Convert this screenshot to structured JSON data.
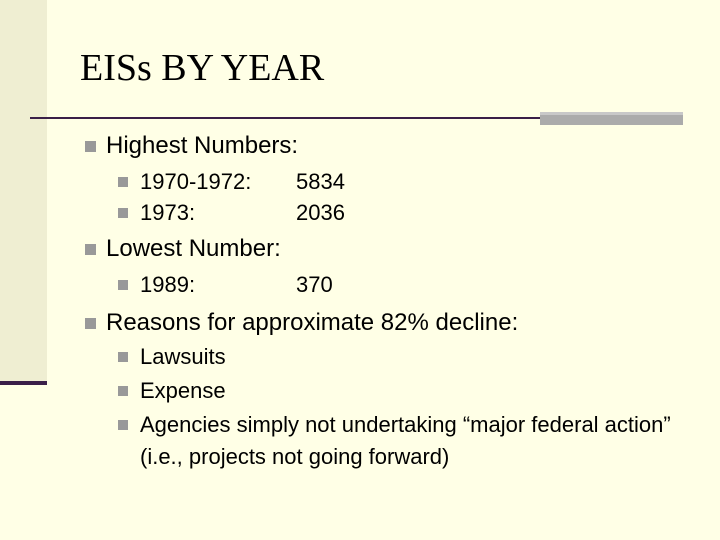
{
  "title": "EISs BY YEAR",
  "bullets": [
    {
      "text": "Highest Numbers:",
      "items": [
        {
          "label": "1970-1972:",
          "value": 5834
        },
        {
          "label": "1973:",
          "value": 2036
        }
      ]
    },
    {
      "text": "Lowest Number:",
      "items": [
        {
          "label": "1989:",
          "value": 370
        }
      ]
    },
    {
      "text": "Reasons for approximate 82% decline:",
      "items": [
        {
          "text": "Lawsuits"
        },
        {
          "text": "Expense"
        },
        {
          "text": "Agencies simply not undertaking “major federal action” (i.e., projects not going forward)"
        }
      ]
    }
  ]
}
